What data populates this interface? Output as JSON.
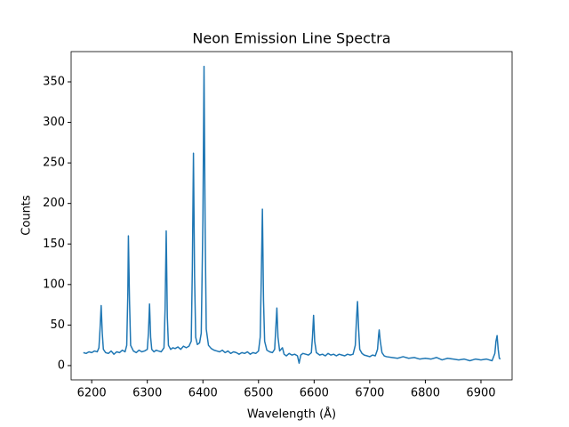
{
  "chart_data": {
    "type": "line",
    "title": "Neon Emission Line Spectra",
    "x_label": "Wavelength (Å)",
    "y_label": "Counts",
    "xlim": [
      6163,
      6956
    ],
    "ylim": [
      -17.6,
      387.3
    ],
    "xticks": [
      6200,
      6300,
      6400,
      6500,
      6600,
      6700,
      6800,
      6900
    ],
    "yticks": [
      0,
      50,
      100,
      150,
      200,
      250,
      300,
      350
    ],
    "color": "#1f77b4",
    "x": [
      6185,
      6190,
      6195,
      6200,
      6205,
      6210,
      6213,
      6215,
      6217,
      6219,
      6221,
      6225,
      6230,
      6235,
      6240,
      6245,
      6250,
      6255,
      6260,
      6263,
      6265,
      6266,
      6268,
      6270,
      6275,
      6280,
      6285,
      6290,
      6295,
      6300,
      6302,
      6304,
      6306,
      6308,
      6312,
      6316,
      6320,
      6325,
      6330,
      6332,
      6334,
      6336,
      6338,
      6342,
      6346,
      6350,
      6355,
      6360,
      6365,
      6370,
      6375,
      6379,
      6381,
      6383,
      6385,
      6387,
      6390,
      6394,
      6397,
      6400,
      6402,
      6404,
      6406,
      6410,
      6415,
      6420,
      6425,
      6430,
      6435,
      6440,
      6445,
      6450,
      6455,
      6460,
      6465,
      6470,
      6475,
      6480,
      6485,
      6490,
      6495,
      6500,
      6503,
      6505,
      6507,
      6509,
      6511,
      6515,
      6520,
      6525,
      6529,
      6531,
      6533,
      6535,
      6538,
      6543,
      6546,
      6550,
      6555,
      6560,
      6565,
      6570,
      6573,
      6576,
      6580,
      6585,
      6590,
      6595,
      6597,
      6599,
      6601,
      6604,
      6610,
      6615,
      6620,
      6625,
      6630,
      6635,
      6640,
      6645,
      6650,
      6655,
      6660,
      6665,
      6670,
      6674,
      6676,
      6678,
      6680,
      6682,
      6686,
      6690,
      6695,
      6700,
      6705,
      6710,
      6714,
      6716,
      6717,
      6719,
      6722,
      6726,
      6730,
      6740,
      6750,
      6760,
      6770,
      6780,
      6790,
      6800,
      6810,
      6820,
      6830,
      6840,
      6850,
      6860,
      6870,
      6880,
      6890,
      6900,
      6910,
      6920,
      6925,
      6927,
      6929,
      6931,
      6933,
      6935
    ],
    "y": [
      16,
      15,
      17,
      16,
      18,
      17,
      22,
      45,
      74,
      40,
      20,
      16,
      15,
      18,
      14,
      17,
      16,
      19,
      17,
      25,
      90,
      160,
      80,
      25,
      18,
      16,
      19,
      17,
      18,
      20,
      40,
      76,
      35,
      20,
      17,
      19,
      18,
      17,
      22,
      70,
      166,
      60,
      25,
      20,
      22,
      21,
      23,
      20,
      24,
      22,
      24,
      30,
      120,
      262,
      110,
      35,
      26,
      28,
      40,
      180,
      369,
      170,
      45,
      25,
      21,
      19,
      18,
      17,
      19,
      16,
      18,
      15,
      17,
      16,
      14,
      16,
      15,
      17,
      14,
      16,
      15,
      18,
      35,
      110,
      193,
      80,
      30,
      19,
      17,
      16,
      20,
      45,
      71,
      35,
      18,
      22,
      14,
      12,
      15,
      13,
      14,
      12,
      3,
      13,
      15,
      14,
      13,
      16,
      35,
      62,
      30,
      16,
      13,
      14,
      12,
      15,
      13,
      14,
      12,
      14,
      13,
      12,
      14,
      13,
      14,
      25,
      55,
      79,
      45,
      20,
      15,
      13,
      12,
      11,
      13,
      12,
      20,
      38,
      44,
      30,
      16,
      12,
      11,
      10,
      9,
      11,
      9,
      10,
      8,
      9,
      8,
      10,
      7,
      9,
      8,
      7,
      8,
      6,
      8,
      7,
      8,
      6,
      15,
      30,
      37,
      20,
      9,
      8
    ]
  }
}
